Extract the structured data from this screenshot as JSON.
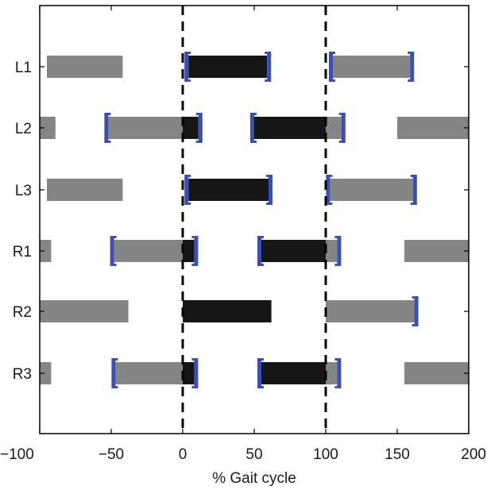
{
  "chart_data": {
    "type": "gantt",
    "xlabel": "% Gait cycle",
    "ylabel": "",
    "xlim": [
      -100,
      200
    ],
    "xticks": [
      -100,
      -50,
      0,
      50,
      100,
      150,
      200
    ],
    "xtick_labels": [
      "−100",
      "−50",
      "0",
      "50",
      "100",
      "150",
      "200"
    ],
    "reference_lines": [
      0,
      100
    ],
    "grid": false,
    "colors": {
      "gray": "#858585",
      "black": "#161616",
      "blue": "#3a4fb0",
      "axis": "#000000"
    },
    "rows": [
      {
        "label": "L1",
        "bars": [
          {
            "start": -95,
            "end": -42,
            "color": "gray"
          },
          {
            "start": 4,
            "end": 59,
            "color": "black"
          },
          {
            "start": 105,
            "end": 159,
            "color": "gray"
          }
        ],
        "error_brackets": [
          [
            4,
            59
          ],
          [
            105,
            159
          ]
        ]
      },
      {
        "label": "L2",
        "bars": [
          {
            "start": -100,
            "end": -89,
            "color": "gray"
          },
          {
            "start": -52,
            "end": 0,
            "color": "gray"
          },
          {
            "start": 0,
            "end": 11,
            "color": "black"
          },
          {
            "start": 50,
            "end": 100,
            "color": "black"
          },
          {
            "start": 100,
            "end": 111,
            "color": "gray"
          },
          {
            "start": 150,
            "end": 200,
            "color": "gray"
          }
        ],
        "error_brackets": [
          [
            -52,
            11
          ],
          [
            50,
            111
          ]
        ]
      },
      {
        "label": "L3",
        "bars": [
          {
            "start": -95,
            "end": -42,
            "color": "gray"
          },
          {
            "start": 4,
            "end": 60,
            "color": "black"
          },
          {
            "start": 103,
            "end": 161,
            "color": "gray"
          }
        ],
        "error_brackets": [
          [
            4,
            60
          ],
          [
            103,
            161
          ]
        ]
      },
      {
        "label": "R1",
        "bars": [
          {
            "start": -100,
            "end": -92,
            "color": "gray"
          },
          {
            "start": -48,
            "end": 0,
            "color": "gray"
          },
          {
            "start": 0,
            "end": 8,
            "color": "black"
          },
          {
            "start": 55,
            "end": 100,
            "color": "black"
          },
          {
            "start": 100,
            "end": 108,
            "color": "gray"
          },
          {
            "start": 155,
            "end": 200,
            "color": "gray"
          }
        ],
        "error_brackets": [
          [
            -48,
            8
          ],
          [
            55,
            108
          ]
        ]
      },
      {
        "label": "R2",
        "bars": [
          {
            "start": -100,
            "end": -38,
            "color": "gray"
          },
          {
            "start": 0,
            "end": 62,
            "color": "black"
          },
          {
            "start": 100,
            "end": 162,
            "color": "gray"
          }
        ],
        "error_brackets": [
          [
            162,
            162
          ]
        ]
      },
      {
        "label": "R3",
        "bars": [
          {
            "start": -100,
            "end": -92,
            "color": "gray"
          },
          {
            "start": -47,
            "end": 0,
            "color": "gray"
          },
          {
            "start": 0,
            "end": 8,
            "color": "black"
          },
          {
            "start": 55,
            "end": 100,
            "color": "black"
          },
          {
            "start": 100,
            "end": 108,
            "color": "gray"
          },
          {
            "start": 155,
            "end": 200,
            "color": "gray"
          }
        ],
        "error_brackets": [
          [
            -47,
            8
          ],
          [
            55,
            108
          ]
        ]
      }
    ]
  }
}
